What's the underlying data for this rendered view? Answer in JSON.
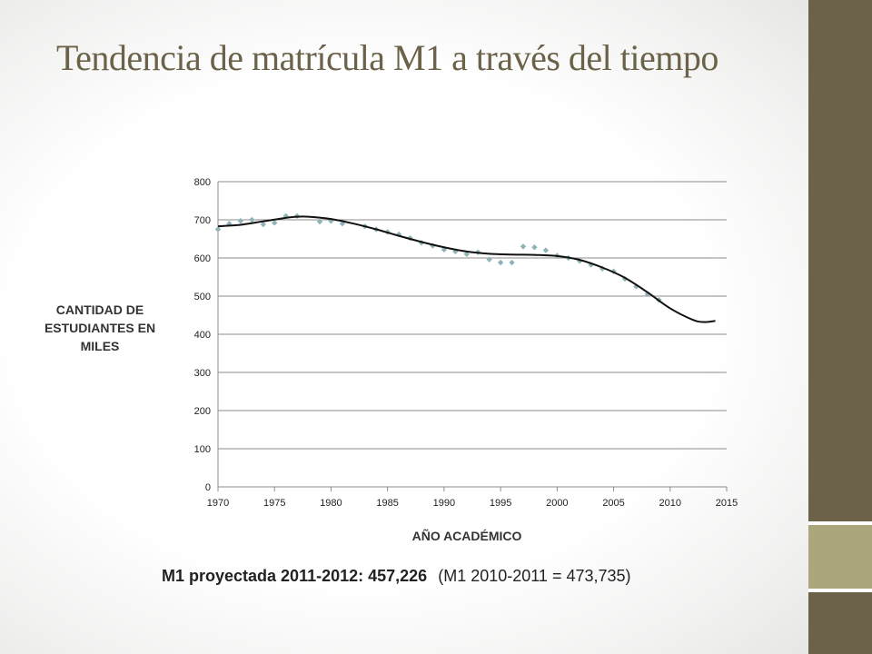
{
  "slide": {
    "title": "Tendencia de matrícula M1 a través del tiempo",
    "footer_projection": "M1 proyectada 2011-2012: 457,226",
    "footer_previous": "(M1 2010-2011 = 473,735)",
    "colors": {
      "accent": "#6b6249",
      "accent_light": "#aca67d",
      "points": "#8fb3b6"
    }
  },
  "chart_data": {
    "type": "scatter",
    "xlabel": "AÑO ACADÉMICO",
    "ylabel": "CANTIDAD DE ESTUDIANTES EN MILES",
    "xlim": [
      1970,
      2015
    ],
    "ylim": [
      0,
      800
    ],
    "x_ticks": [
      1970,
      1975,
      1980,
      1985,
      1990,
      1995,
      2000,
      2005,
      2010,
      2015
    ],
    "y_ticks": [
      0,
      100,
      200,
      300,
      400,
      500,
      600,
      700,
      800
    ],
    "grid": true,
    "legend": "none",
    "series": [
      {
        "kind": "points",
        "x": [
          1970,
          1971,
          1972,
          1973,
          1974,
          1975,
          1976,
          1977,
          1979,
          1980,
          1981,
          1983,
          1984,
          1985,
          1986,
          1987,
          1988,
          1989,
          1990,
          1991,
          1992,
          1993,
          1994,
          1995,
          1996,
          1997,
          1998,
          1999,
          2000,
          2001,
          2002,
          2003,
          2004,
          2005,
          2006,
          2007,
          2008,
          2009
        ],
        "y": [
          675,
          690,
          697,
          700,
          688,
          692,
          710,
          710,
          695,
          697,
          690,
          683,
          675,
          668,
          662,
          652,
          640,
          632,
          622,
          617,
          610,
          615,
          596,
          588,
          588,
          630,
          628,
          620,
          606,
          600,
          592,
          582,
          572,
          565,
          545,
          525,
          505,
          490
        ]
      },
      {
        "kind": "trendline",
        "x": [
          1970,
          1972,
          1974,
          1976,
          1977,
          1978,
          1980,
          1982,
          1984,
          1986,
          1988,
          1990,
          1992,
          1994,
          1996,
          1998,
          2000,
          2002,
          2004,
          2006,
          2008,
          2010,
          2012,
          2013,
          2014
        ],
        "y": [
          683,
          687,
          696,
          705,
          708,
          708,
          702,
          690,
          675,
          658,
          642,
          628,
          617,
          611,
          609,
          608,
          605,
          595,
          575,
          548,
          510,
          468,
          438,
          432,
          435
        ]
      }
    ]
  }
}
